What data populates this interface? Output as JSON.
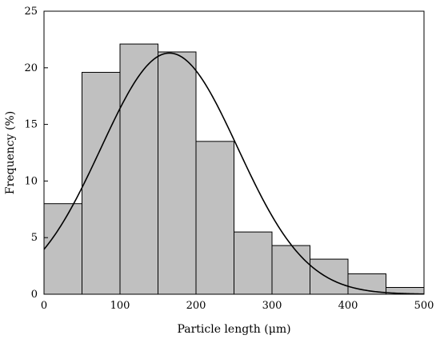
{
  "chart_data": {
    "type": "bar",
    "xlabel": "Particle length (μm)",
    "ylabel": "Frequency (%)",
    "xlim": [
      0,
      500
    ],
    "ylim": [
      0,
      25
    ],
    "xticks": [
      "0",
      "100",
      "200",
      "300",
      "400",
      "500"
    ],
    "yticks": [
      "0",
      "5",
      "10",
      "15",
      "20",
      "25"
    ],
    "bins": [
      {
        "x0": 0,
        "x1": 50,
        "value": 8.0
      },
      {
        "x0": 50,
        "x1": 100,
        "value": 19.6
      },
      {
        "x0": 100,
        "x1": 150,
        "value": 22.1
      },
      {
        "x0": 150,
        "x1": 200,
        "value": 21.4
      },
      {
        "x0": 200,
        "x1": 250,
        "value": 13.5
      },
      {
        "x0": 250,
        "x1": 300,
        "value": 5.5
      },
      {
        "x0": 300,
        "x1": 350,
        "value": 4.3
      },
      {
        "x0": 350,
        "x1": 400,
        "value": 3.1
      },
      {
        "x0": 400,
        "x1": 450,
        "value": 1.8
      },
      {
        "x0": 450,
        "x1": 500,
        "value": 0.6
      }
    ],
    "fit_curve": {
      "type": "normal",
      "peak_x": 165,
      "peak_y": 21.3,
      "sigma": 90
    },
    "bar_color": "#c0c0c0",
    "grid": false
  }
}
